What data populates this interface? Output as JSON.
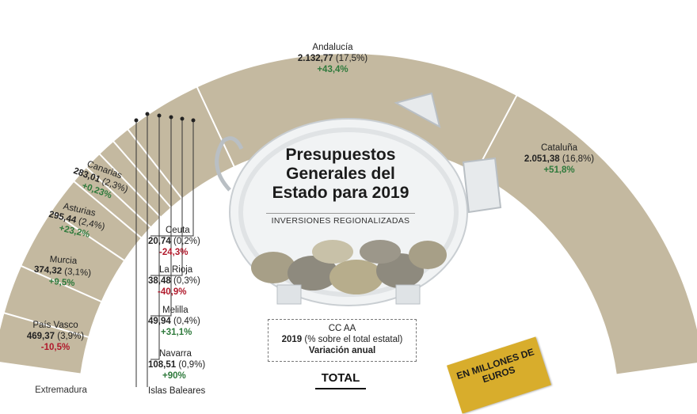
{
  "chart_data": {
    "type": "pie",
    "title": "Presupuestos Generales del Estado para 2019",
    "subtitle": "INVERSIONES REGIONALIZADAS",
    "legend": {
      "line1": "CC AA",
      "line2_bold": "2019",
      "line2_rest": " (% sobre el total estatal)",
      "line3": "Variación anual"
    },
    "total_label": "TOTAL",
    "badge_label": "EN MILLONES DE EUROS",
    "colors": {
      "ring": "#c4b9a0",
      "divider": "#ffffff",
      "positive": "#2f7a3c",
      "negative": "#b0192b",
      "badge": "#d8ad2c"
    },
    "slices": [
      {
        "name": "Andalucía",
        "value": "2.132,77",
        "share": "(17,5%)",
        "variation": "+43,4%"
      },
      {
        "name": "Cataluña",
        "value": "2.051,38",
        "share": "(16,8%)",
        "variation": "+51,8%"
      },
      {
        "name": "Canarias",
        "value": "283,01",
        "share": "(2,3%)",
        "variation": "+0,23%"
      },
      {
        "name": "Asturias",
        "value": "295,44",
        "share": "(2,4%)",
        "variation": "+23,2%"
      },
      {
        "name": "Murcia",
        "value": "374,32",
        "share": "(3,1%)",
        "variation": "+9,5%"
      },
      {
        "name": "País Vasco",
        "value": "469,37",
        "share": "(3,9%)",
        "variation": "-10,5%"
      },
      {
        "name": "Ceuta",
        "value": "20,74",
        "share": "(0,2%)",
        "variation": "-24,3%"
      },
      {
        "name": "La Rioja",
        "value": "38,48",
        "share": "(0,3%)",
        "variation": "-40,9%"
      },
      {
        "name": "Melilla",
        "value": "49,94",
        "share": "(0,4%)",
        "variation": "+31,1%"
      },
      {
        "name": "Navarra",
        "value": "108,51",
        "share": "(0,9%)",
        "variation": "+90%"
      },
      {
        "name": "Islas Baleares",
        "value": "",
        "share": "",
        "variation": ""
      }
    ],
    "partial_labels": {
      "lower_left": "Extremadura"
    }
  }
}
